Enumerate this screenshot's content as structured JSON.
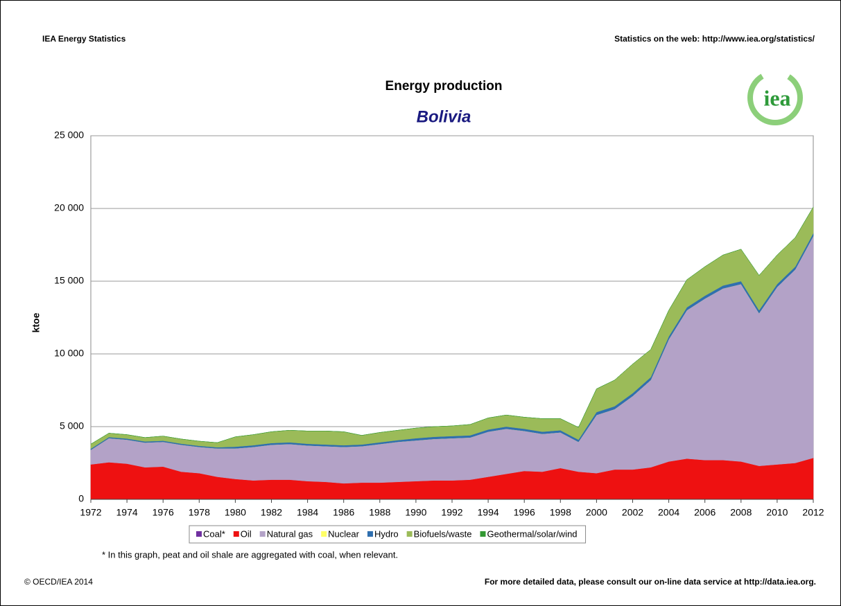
{
  "header_left": "IEA Energy Statistics",
  "header_right": "Statistics on the web: http://www.iea.org/statistics/",
  "logo": "iea",
  "footnote": "* In this graph, peat and oil shale are aggregated with coal, when relevant.",
  "copyright": "© OECD/IEA 2014",
  "footer_right": "For more detailed data, please consult our on-line data service at http://data.iea.org.",
  "chart_data": {
    "type": "stacked_area",
    "title": "Energy production",
    "subtitle": "Bolivia",
    "y_label": "ktoe",
    "x": [
      1972,
      1973,
      1974,
      1975,
      1976,
      1977,
      1978,
      1979,
      1980,
      1981,
      1982,
      1983,
      1984,
      1985,
      1986,
      1987,
      1988,
      1989,
      1990,
      1991,
      1992,
      1993,
      1994,
      1995,
      1996,
      1997,
      1998,
      1999,
      2000,
      2001,
      2002,
      2003,
      2004,
      2005,
      2006,
      2007,
      2008,
      2009,
      2010,
      2011,
      2012
    ],
    "xlim": [
      1972,
      2012
    ],
    "xticks": [
      1972,
      1974,
      1976,
      1978,
      1980,
      1982,
      1984,
      1986,
      1988,
      1990,
      1992,
      1994,
      1996,
      1998,
      2000,
      2002,
      2004,
      2006,
      2008,
      2010,
      2012
    ],
    "ylim": [
      0,
      25000
    ],
    "yticks": [
      0,
      {
        "value": 5000,
        "label": "5 000"
      },
      {
        "value": 10000,
        "label": "10 000"
      },
      {
        "value": 15000,
        "label": "15 000"
      },
      {
        "value": 20000,
        "label": "20 000"
      },
      {
        "value": 25000,
        "label": "25 000"
      }
    ],
    "grid": true,
    "series": [
      {
        "name": "Coal*",
        "color": "#7030a0",
        "values": [
          0,
          0,
          0,
          0,
          0,
          0,
          0,
          0,
          0,
          0,
          0,
          0,
          0,
          0,
          0,
          0,
          0,
          0,
          0,
          0,
          0,
          0,
          0,
          0,
          0,
          0,
          0,
          0,
          0,
          0,
          0,
          0,
          0,
          0,
          0,
          0,
          0,
          0,
          0,
          0,
          0
        ]
      },
      {
        "name": "Oil",
        "color": "#ee1111",
        "values": [
          2400,
          2550,
          2450,
          2200,
          2250,
          1900,
          1800,
          1550,
          1400,
          1300,
          1350,
          1350,
          1250,
          1200,
          1100,
          1150,
          1150,
          1200,
          1250,
          1300,
          1300,
          1350,
          1550,
          1750,
          1950,
          1900,
          2150,
          1900,
          1800,
          2050,
          2050,
          2200,
          2600,
          2800,
          2700,
          2700,
          2600,
          2300,
          2400,
          2500,
          2850
        ]
      },
      {
        "name": "Natural gas",
        "color": "#b3a2c7",
        "values": [
          1000,
          1650,
          1650,
          1700,
          1700,
          1850,
          1800,
          1950,
          2100,
          2300,
          2400,
          2450,
          2450,
          2450,
          2500,
          2500,
          2650,
          2750,
          2800,
          2850,
          2900,
          2900,
          3100,
          3100,
          2750,
          2600,
          2450,
          2050,
          4000,
          4150,
          5050,
          6000,
          8400,
          10200,
          11100,
          11800,
          12200,
          10500,
          12200,
          13300,
          15250
        ]
      },
      {
        "name": "Nuclear",
        "color": "#ffff66",
        "values": [
          0,
          0,
          0,
          0,
          0,
          0,
          0,
          0,
          0,
          0,
          0,
          0,
          0,
          0,
          0,
          0,
          0,
          0,
          0,
          0,
          0,
          0,
          0,
          0,
          0,
          0,
          0,
          0,
          0,
          0,
          0,
          0,
          0,
          0,
          0,
          0,
          0,
          0,
          0,
          0,
          0
        ]
      },
      {
        "name": "Hydro",
        "color": "#2f6faf",
        "values": [
          80,
          80,
          80,
          80,
          80,
          80,
          80,
          80,
          120,
          120,
          120,
          120,
          120,
          120,
          120,
          120,
          120,
          120,
          150,
          150,
          150,
          150,
          150,
          150,
          150,
          150,
          150,
          150,
          200,
          200,
          200,
          200,
          200,
          200,
          200,
          200,
          200,
          200,
          200,
          200,
          200
        ]
      },
      {
        "name": "Biofuels/waste",
        "color": "#9bbb59",
        "values": [
          320,
          270,
          270,
          270,
          320,
          320,
          320,
          320,
          680,
          730,
          780,
          830,
          880,
          930,
          930,
          630,
          680,
          680,
          700,
          700,
          700,
          750,
          800,
          800,
          800,
          900,
          800,
          850,
          1600,
          1800,
          2000,
          1900,
          1800,
          1900,
          2000,
          2100,
          2200,
          2400,
          2000,
          2000,
          1800
        ]
      },
      {
        "name": "Geothermal/solar/wind",
        "color": "#339933",
        "values": [
          0,
          0,
          0,
          0,
          0,
          0,
          0,
          0,
          0,
          0,
          0,
          0,
          0,
          0,
          0,
          0,
          0,
          0,
          0,
          0,
          0,
          0,
          0,
          0,
          0,
          0,
          0,
          0,
          0,
          0,
          0,
          0,
          0,
          0,
          0,
          0,
          0,
          0,
          0,
          0,
          0
        ]
      }
    ]
  }
}
